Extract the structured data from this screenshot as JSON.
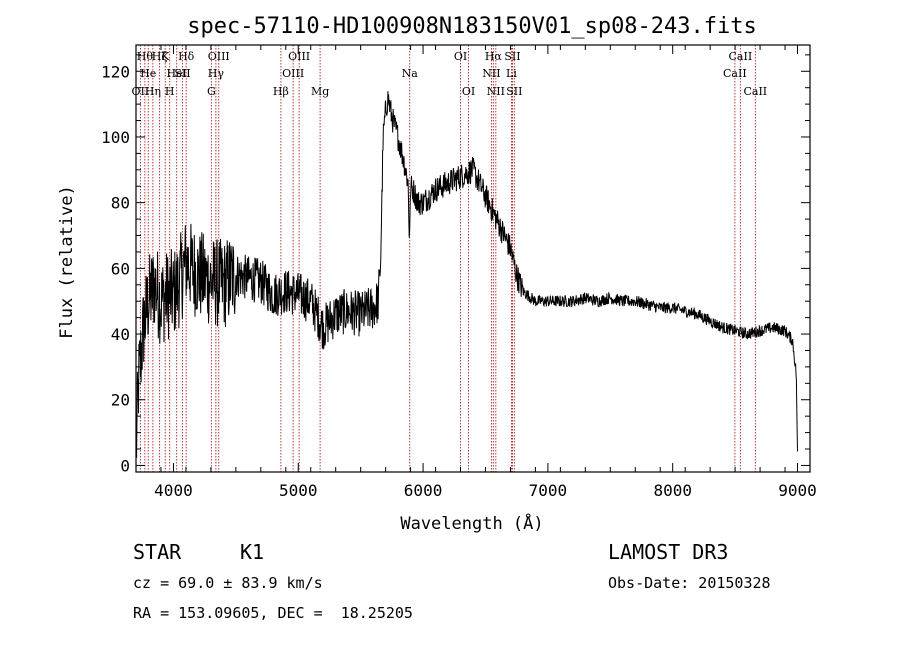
{
  "chart_data": {
    "type": "line",
    "title": "spec-57110-HD100908N183150V01_sp08-243.fits",
    "xlabel": "Wavelength (Å)",
    "ylabel": "Flux (relative)",
    "xlim": [
      3700,
      9100
    ],
    "ylim": [
      -2,
      128
    ],
    "x_ticks": [
      4000,
      5000,
      6000,
      7000,
      8000,
      9000
    ],
    "y_ticks": [
      0,
      20,
      40,
      60,
      80,
      100,
      120
    ],
    "x_tick_labels": [
      "4000",
      "5000",
      "6000",
      "7000",
      "8000",
      "9000"
    ],
    "y_tick_labels": [
      "0",
      "20",
      "40",
      "60",
      "80",
      "100",
      "120"
    ],
    "grid": false,
    "series": [
      {
        "name": "flux",
        "color": "#000000",
        "anchors": [
          [
            3700,
            2
          ],
          [
            3720,
            25
          ],
          [
            3760,
            42
          ],
          [
            3800,
            50
          ],
          [
            3850,
            55
          ],
          [
            3900,
            50
          ],
          [
            3950,
            52
          ],
          [
            4000,
            52
          ],
          [
            4050,
            56
          ],
          [
            4100,
            62
          ],
          [
            4150,
            60
          ],
          [
            4200,
            58
          ],
          [
            4300,
            56
          ],
          [
            4400,
            55
          ],
          [
            4500,
            58
          ],
          [
            4600,
            57
          ],
          [
            4700,
            56
          ],
          [
            4800,
            52
          ],
          [
            4900,
            53
          ],
          [
            5000,
            52
          ],
          [
            5100,
            50
          ],
          [
            5200,
            42
          ],
          [
            5300,
            46
          ],
          [
            5400,
            47
          ],
          [
            5500,
            46
          ],
          [
            5600,
            48
          ],
          [
            5640,
            50
          ],
          [
            5660,
            62
          ],
          [
            5680,
            100
          ],
          [
            5700,
            108
          ],
          [
            5720,
            112
          ],
          [
            5750,
            106
          ],
          [
            5800,
            100
          ],
          [
            5850,
            92
          ],
          [
            5880,
            86
          ],
          [
            5920,
            84
          ],
          [
            5960,
            80
          ],
          [
            6000,
            80
          ],
          [
            6100,
            84
          ],
          [
            6200,
            86
          ],
          [
            6300,
            88
          ],
          [
            6400,
            90
          ],
          [
            6450,
            86
          ],
          [
            6500,
            82
          ],
          [
            6550,
            78
          ],
          [
            6600,
            74
          ],
          [
            6650,
            70
          ],
          [
            6700,
            66
          ],
          [
            6750,
            58
          ],
          [
            6800,
            53
          ],
          [
            6900,
            50
          ],
          [
            7000,
            50
          ],
          [
            7100,
            50
          ],
          [
            7200,
            50
          ],
          [
            7300,
            51
          ],
          [
            7400,
            50
          ],
          [
            7500,
            51
          ],
          [
            7600,
            50
          ],
          [
            7700,
            50
          ],
          [
            7800,
            49
          ],
          [
            7900,
            48
          ],
          [
            8000,
            48
          ],
          [
            8100,
            47
          ],
          [
            8200,
            46
          ],
          [
            8300,
            44
          ],
          [
            8400,
            42
          ],
          [
            8500,
            41
          ],
          [
            8600,
            40
          ],
          [
            8700,
            41
          ],
          [
            8800,
            42
          ],
          [
            8900,
            41
          ],
          [
            8960,
            38
          ],
          [
            8990,
            28
          ],
          [
            9000,
            3
          ]
        ]
      }
    ],
    "lines": [
      {
        "x": 3735,
        "row": 3,
        "label": "OII"
      },
      {
        "x": 3771,
        "row": 1,
        "label": "Hθ"
      },
      {
        "x": 3798,
        "row": 2,
        "label": "He"
      },
      {
        "x": 3835,
        "row": 3,
        "label": "Hη"
      },
      {
        "x": 3889,
        "row": 1,
        "label": "Hζ"
      },
      {
        "x": 3934,
        "row": 1,
        "label": "K"
      },
      {
        "x": 3970,
        "row": 3,
        "label": "H"
      },
      {
        "x": 4026,
        "row": 2,
        "label": "HeI"
      },
      {
        "x": 4072,
        "row": 2,
        "label": "SII"
      },
      {
        "x": 4102,
        "row": 1,
        "label": "Hδ"
      },
      {
        "x": 4304,
        "row": 3,
        "label": "G"
      },
      {
        "x": 4340,
        "row": 2,
        "label": "Hγ"
      },
      {
        "x": 4363,
        "row": 1,
        "label": "OIII"
      },
      {
        "x": 4861,
        "row": 3,
        "label": "Hβ"
      },
      {
        "x": 4959,
        "row": 2,
        "label": "OIII"
      },
      {
        "x": 5007,
        "row": 1,
        "label": "OIII"
      },
      {
        "x": 5175,
        "row": 3,
        "label": "Mg"
      },
      {
        "x": 5893,
        "row": 2,
        "label": "Na"
      },
      {
        "x": 6300,
        "row": 1,
        "label": "OI"
      },
      {
        "x": 6364,
        "row": 3,
        "label": "OI"
      },
      {
        "x": 6548,
        "row": 2,
        "label": "NII"
      },
      {
        "x": 6563,
        "row": 1,
        "label": "Hα"
      },
      {
        "x": 6583,
        "row": 3,
        "label": "NII"
      },
      {
        "x": 6708,
        "row": 2,
        "label": "Li"
      },
      {
        "x": 6716,
        "row": 1,
        "label": "SII"
      },
      {
        "x": 6731,
        "row": 3,
        "label": "SII"
      },
      {
        "x": 8498,
        "row": 2,
        "label": "CaII"
      },
      {
        "x": 8542,
        "row": 1,
        "label": "CaII"
      },
      {
        "x": 8662,
        "row": 3,
        "label": "CaII"
      }
    ],
    "line_color": "#b22222"
  },
  "info": {
    "class_label": "STAR",
    "subclass_label": "K1",
    "survey": "LAMOST DR3",
    "cz": "cz = 69.0 ± 83.9 km/s",
    "obs_date": "Obs-Date: 20150328",
    "coords": "RA = 153.09605, DEC =  18.25205"
  }
}
